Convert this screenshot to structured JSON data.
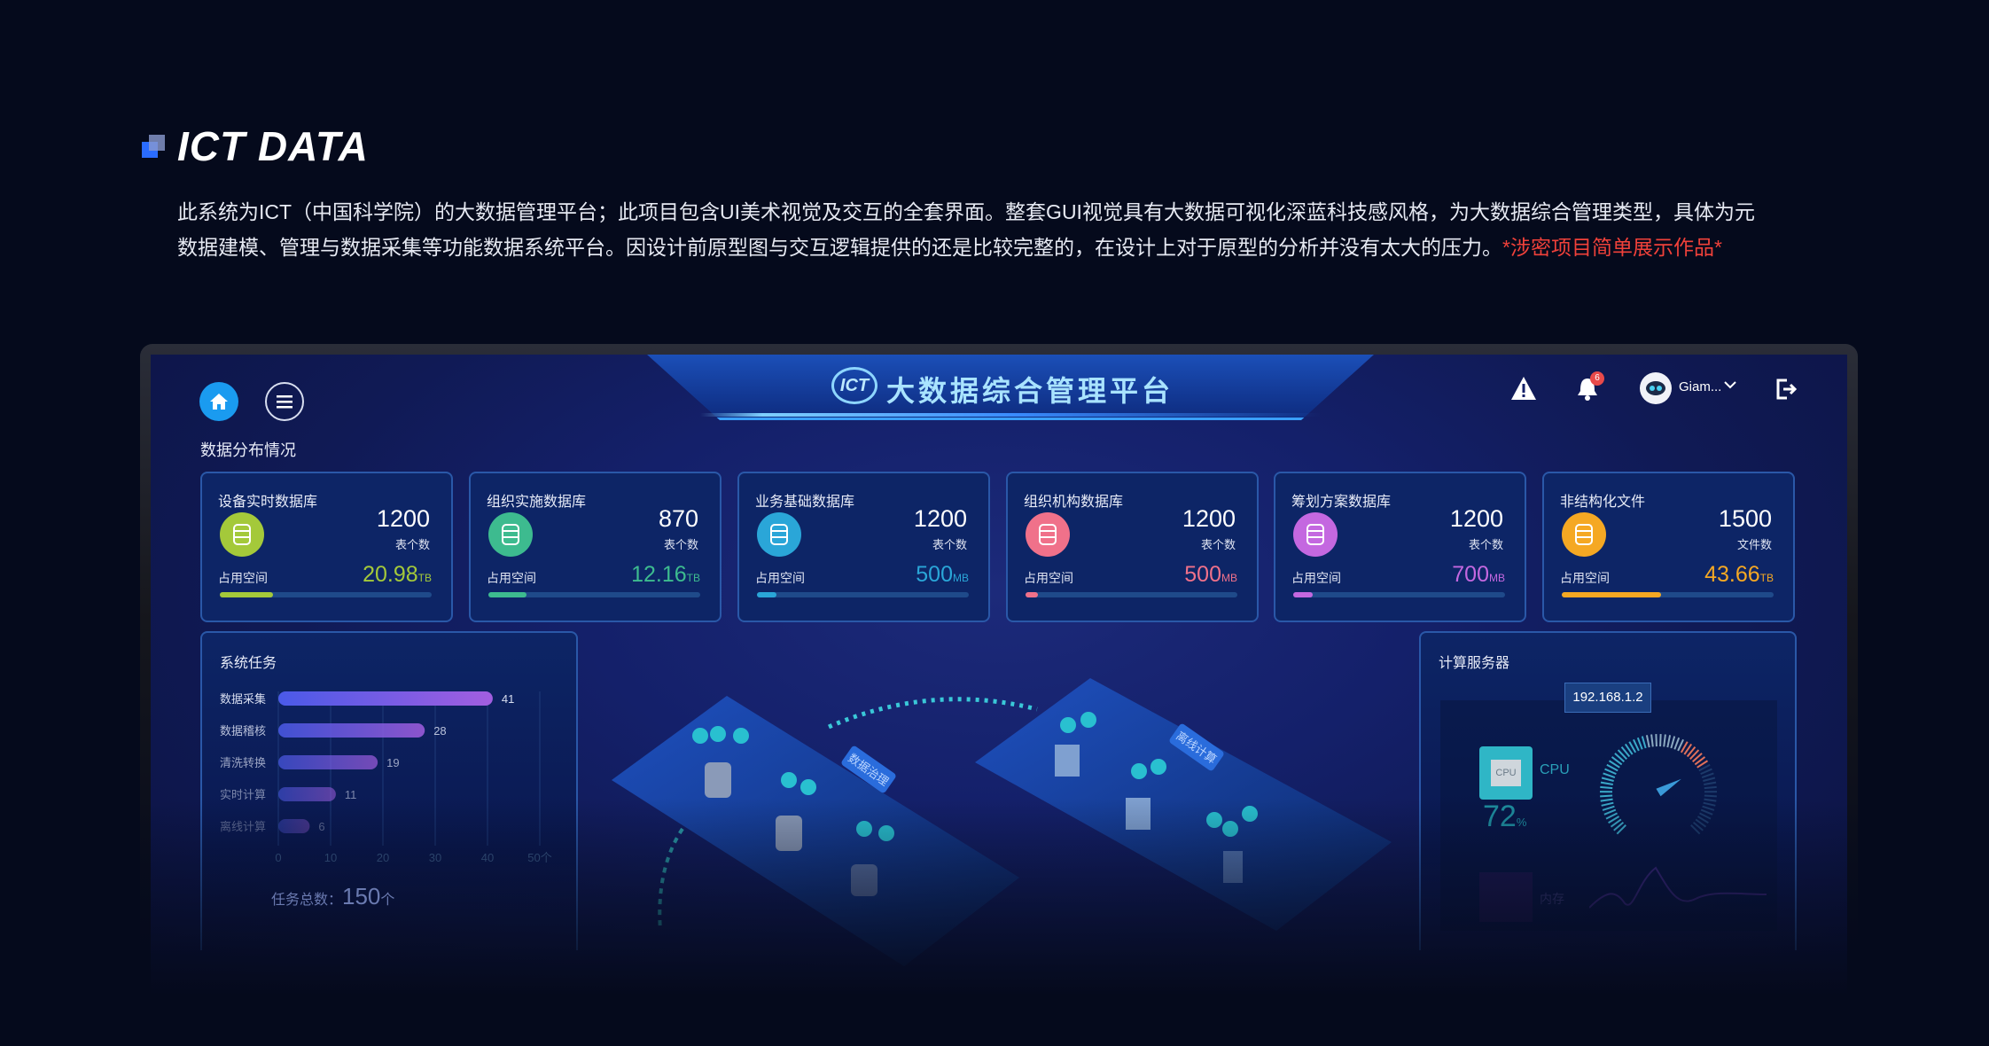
{
  "intro": {
    "title": "ICT DATA",
    "line1": "此系统为ICT（中国科学院）的大数据管理平台；此项目包含UI美术视觉及交互的全套界面。整套GUI视觉具有大数据可视化深蓝科技感风格，为大数据综合管理类型，具体为元",
    "line2": "数据建模、管理与数据采集等功能数据系统平台。因设计前原型图与交互逻辑提供的还是比较完整的，在设计上对于原型的分析并没有太大的压力。",
    "note": "*涉密项目简单展示作品*",
    "accent": "#2a6cff",
    "note_color": "#f0413a"
  },
  "header": {
    "logo": "ICT",
    "title": "大数据综合管理平台",
    "notification_count": "6",
    "user_name": "Giam...",
    "icons": [
      "home-icon",
      "menu-icon",
      "warning-icon",
      "bell-icon",
      "avatar",
      "chevron-down-icon",
      "logout-icon"
    ]
  },
  "section_title": "数据分布情况",
  "occupied_label": "占用空间",
  "cards": [
    {
      "name": "设备实时数据库",
      "count": "1200",
      "count_label": "表个数",
      "size": "20.98",
      "unit": "TB",
      "color": "#a4c93a",
      "fill": 0.25,
      "icon": "database-icon"
    },
    {
      "name": "组织实施数据库",
      "count": "870",
      "count_label": "表个数",
      "size": "12.16",
      "unit": "TB",
      "color": "#3dbb8f",
      "fill": 0.18,
      "icon": "database-check-icon"
    },
    {
      "name": "业务基础数据库",
      "count": "1200",
      "count_label": "表个数",
      "size": "500",
      "unit": "MB",
      "color": "#2aa6d8",
      "fill": 0.09,
      "icon": "monitor-chart-icon"
    },
    {
      "name": "组织机构数据库",
      "count": "1200",
      "count_label": "表个数",
      "size": "500",
      "unit": "MB",
      "color": "#f0718a",
      "fill": 0.06,
      "icon": "database-pulse-icon"
    },
    {
      "name": "筹划方案数据库",
      "count": "1200",
      "count_label": "表个数",
      "size": "700",
      "unit": "MB",
      "color": "#c468e0",
      "fill": 0.09,
      "icon": "document-tray-icon"
    },
    {
      "name": "非结构化文件",
      "count": "1500",
      "count_label": "文件数",
      "size": "43.66",
      "unit": "TB",
      "color": "#f5a823",
      "fill": 0.47,
      "icon": "file-icon"
    }
  ],
  "tasks": {
    "title": "系统任务",
    "total_label": "任务总数：",
    "total_value": "150",
    "total_unit": "个"
  },
  "chart_data": {
    "type": "bar",
    "orientation": "horizontal",
    "categories": [
      "数据采集",
      "数据稽核",
      "清洗转换",
      "实时计算",
      "离线计算"
    ],
    "values": [
      41,
      28,
      19,
      11,
      6
    ],
    "xlim": [
      0,
      50
    ],
    "xticks": [
      "0",
      "10",
      "20",
      "30",
      "40",
      "50个"
    ],
    "grid": true,
    "colors": [
      "#4a5ae8",
      "#a25ee0"
    ]
  },
  "scene": {
    "platform_labels": [
      "数据治理",
      "离线计算"
    ]
  },
  "server": {
    "title": "计算服务器",
    "ip": "192.168.1.2",
    "cpu_label": "CPU",
    "cpu_chip": "CPU",
    "cpu_value": "72",
    "cpu_unit": "%",
    "gauge_value": 72,
    "mem_label": "内存"
  }
}
